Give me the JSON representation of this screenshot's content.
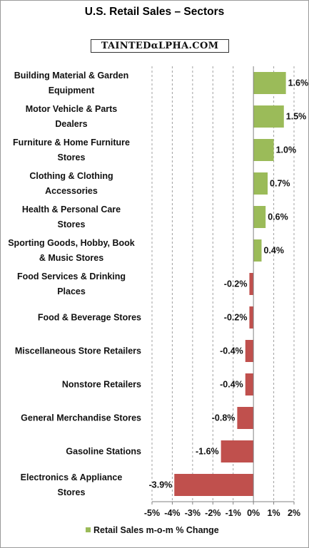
{
  "logo_text": "TAINTEDαLPHA.COM",
  "chart_data": {
    "type": "bar",
    "orientation": "horizontal",
    "title": "U.S. Retail Sales – Sectors",
    "xlim": [
      -5,
      2
    ],
    "x_ticks": [
      -5,
      -4,
      -3,
      -2,
      -1,
      0,
      1,
      2
    ],
    "tick_format": "percent",
    "grid": "vertical dashed",
    "legend": {
      "position": "bottom",
      "entries": [
        {
          "name": "Retail Sales m-o-m % Change",
          "color": "#9bbb59"
        }
      ]
    },
    "colors": {
      "positive": "#9bbb59",
      "negative": "#c0504d"
    },
    "categories": [
      [
        "Building Material & Garden",
        "Equipment"
      ],
      [
        "Motor Vehicle & Parts",
        "Dealers"
      ],
      [
        "Furniture & Home Furniture",
        "Stores"
      ],
      [
        "Clothing & Clothing",
        "Accessories"
      ],
      [
        "Health & Personal Care",
        "Stores"
      ],
      [
        "Sporting Goods, Hobby, Book",
        "& Music Stores"
      ],
      [
        "Food Services & Drinking",
        "Places"
      ],
      [
        "Food & Beverage Stores"
      ],
      [
        "Miscellaneous Store Retailers"
      ],
      [
        "Nonstore Retailers"
      ],
      [
        "General Merchandise Stores"
      ],
      [
        "Gasoline Stations"
      ],
      [
        "Electronics & Appliance",
        "Stores"
      ]
    ],
    "values": [
      1.6,
      1.5,
      1.0,
      0.7,
      0.6,
      0.4,
      -0.2,
      -0.2,
      -0.4,
      -0.4,
      -0.8,
      -1.6,
      -3.9
    ]
  }
}
